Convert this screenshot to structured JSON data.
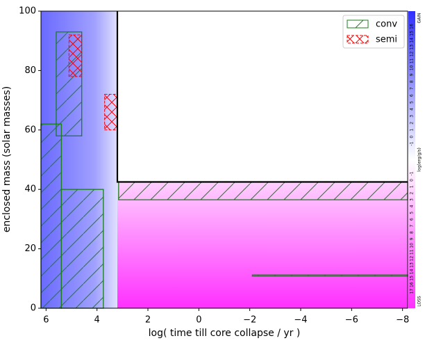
{
  "chart_data": {
    "type": "kippenhahn",
    "xlabel": "log( time till core collapse / yr )",
    "ylabel": "enclosed mass (solar masses)",
    "xlim": [
      6.2,
      -8.2
    ],
    "xticks": [
      6,
      4,
      2,
      0,
      {
        "value": -2,
        "label": "−2"
      },
      {
        "value": -4,
        "label": "−4"
      },
      {
        "value": -6,
        "label": "−6"
      },
      {
        "value": -8,
        "label": "−8"
      }
    ],
    "ylim": [
      0,
      100
    ],
    "yticks": [
      0,
      20,
      40,
      60,
      80,
      100
    ],
    "legend_loc": "upper right",
    "series": [
      {
        "name": "conv",
        "color": "#1a7f1a",
        "hatch": "/"
      },
      {
        "name": "semi",
        "color": "#ff0000",
        "hatch": "x"
      }
    ],
    "boundary": {
      "color": "#000000",
      "x": [
        3.2,
        3.2,
        -8.2
      ],
      "values": [
        100,
        42.5,
        42.5
      ]
    },
    "conv_zones": [
      {
        "x": [
          3.15,
          -8.2
        ],
        "values": [
          36.5,
          42.5
        ]
      },
      {
        "x": [
          6.2,
          5.4
        ],
        "values": [
          0,
          62
        ]
      },
      {
        "x": [
          5.4,
          3.75
        ],
        "values": [
          0,
          40
        ]
      },
      {
        "x": [
          5.6,
          4.6
        ],
        "values": [
          58,
          93
        ]
      },
      {
        "x": [
          -2.1,
          -8.2
        ],
        "values": [
          10.8,
          11.2
        ]
      }
    ],
    "semi_zones": [
      {
        "x": [
          5.1,
          4.6
        ],
        "values": [
          78,
          92
        ]
      },
      {
        "x": [
          3.7,
          3.2
        ],
        "values": [
          60,
          72
        ]
      }
    ],
    "colorbar": {
      "gain_label": "GAIN",
      "loss_label": "LOSS",
      "unit_label": "log(erg/g/s)",
      "gain_ticks": [
        16,
        15,
        14,
        13,
        12,
        11,
        10,
        9,
        8,
        7,
        6,
        5,
        4,
        3,
        2,
        1,
        0,
        -1
      ],
      "loss_ticks": [
        -1,
        0,
        1,
        2,
        3,
        4,
        5,
        6,
        7,
        8,
        9,
        10,
        11,
        12,
        13,
        14,
        15,
        16,
        17
      ]
    }
  }
}
